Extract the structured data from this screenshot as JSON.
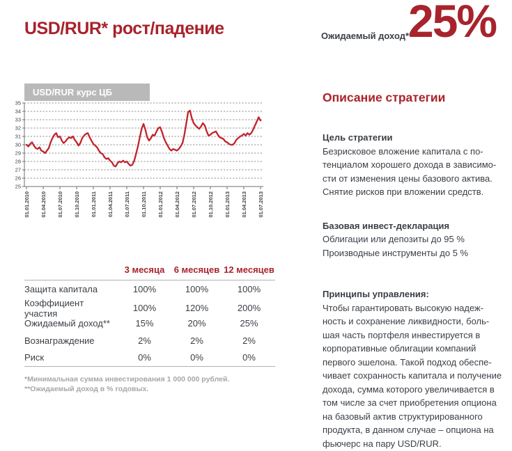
{
  "header": {
    "title": "USD/RUR* рост/падение",
    "expected_income_label": "Ожидаемый доход**",
    "expected_income_value": "25%"
  },
  "chart_data": {
    "type": "line",
    "title": "USD/RUR курс ЦБ",
    "xlabel": "",
    "ylabel": "",
    "ylim": [
      25,
      35
    ],
    "ytick_step": 1,
    "grid": "horizontal-dashed",
    "legend": "none",
    "line_color": "#c2232c",
    "x_tick_labels": [
      "01.01.2010",
      "01.04.2010",
      "01.07.2010",
      "01.10.2010",
      "01.01.2011",
      "01.04.2011",
      "01.07.2011",
      "01.10.2011",
      "01.01.2012",
      "01.04.2012",
      "01.07.2012",
      "01.10.2012",
      "01.01.2013",
      "01.04.2013",
      "01.07.2013"
    ],
    "values": [
      30.0,
      29.8,
      30.1,
      30.3,
      29.9,
      29.6,
      29.5,
      29.7,
      29.3,
      29.2,
      29.0,
      29.3,
      29.6,
      30.3,
      30.8,
      31.2,
      31.4,
      30.9,
      31.0,
      30.5,
      30.2,
      30.4,
      30.7,
      30.9,
      30.8,
      31.0,
      30.6,
      30.3,
      29.9,
      30.2,
      30.8,
      31.1,
      31.3,
      31.4,
      30.9,
      30.5,
      30.1,
      29.9,
      29.7,
      29.3,
      29.0,
      28.9,
      28.5,
      28.3,
      28.4,
      28.1,
      27.9,
      27.5,
      27.4,
      27.8,
      28.0,
      27.9,
      28.1,
      27.9,
      28.0,
      27.7,
      27.5,
      27.6,
      28.1,
      28.9,
      29.8,
      30.9,
      31.9,
      32.5,
      31.8,
      30.9,
      30.5,
      30.8,
      31.2,
      31.1,
      31.6,
      32.0,
      32.1,
      31.5,
      30.8,
      30.3,
      29.9,
      29.5,
      29.3,
      29.5,
      29.4,
      29.3,
      29.5,
      29.8,
      30.2,
      31.2,
      32.5,
      33.9,
      34.1,
      33.2,
      32.6,
      32.3,
      32.1,
      31.9,
      32.2,
      32.6,
      32.3,
      31.6,
      31.1,
      31.2,
      31.4,
      31.5,
      31.6,
      31.2,
      30.9,
      30.8,
      30.7,
      30.4,
      30.3,
      30.1,
      30.0,
      30.0,
      30.2,
      30.6,
      30.8,
      31.0,
      31.1,
      31.3,
      31.1,
      31.4,
      31.2,
      31.4,
      31.8,
      32.3,
      32.8,
      33.3,
      32.9
    ]
  },
  "table": {
    "columns": [
      "3 месяца",
      "6 месяцев",
      "12 месяцев"
    ],
    "rows": [
      {
        "label": "Защита капитала",
        "values": [
          "100%",
          "100%",
          "100%"
        ]
      },
      {
        "label": "Коэффициент участия",
        "values": [
          "100%",
          "120%",
          "200%"
        ]
      },
      {
        "label": "Ожидаемый доход**",
        "values": [
          "15%",
          "20%",
          "25%"
        ]
      },
      {
        "label": "Вознаграждение",
        "values": [
          "2%",
          "2%",
          "2%"
        ]
      },
      {
        "label": "Риск",
        "values": [
          "0%",
          "0%",
          "0%"
        ]
      }
    ],
    "footnote1": "*Минимальная сумма инвестирования 1 000 000 рублей.",
    "footnote2": "**Ожидаемый доход в % годовых."
  },
  "description": {
    "heading": "Описание стратегии",
    "sections": [
      {
        "title": "Цель стратегии",
        "body": "Безрисковое вложение капитала с по-\nтенциалом хорошего дохода в зависимо-\nсти от изменения цены базового актива.\nСнятие рисков при вложении средств."
      },
      {
        "title": "Базовая инвест-декларация",
        "body": "Облигации или депозиты  до 95 %\nПроизводные инструменты до 5 %"
      },
      {
        "title": "Принципы управления:",
        "body": "Чтобы гарантировать высокую надеж-\nность и сохранение ликвидности, боль-\nшая часть портфеля инвестируется в\nкорпоративные облигации компаний\nпервого эшелона. Такой подход обеспе-\nчивает сохранность капитала и получение\nдохода, сумма которого увеличивается  в\nтом числе за счет приобретения опциона\nна базовый актив структурированного\nпродукта, в данном случае – опциона на\nфьючерс на пару USD/RUR."
      }
    ]
  },
  "colors": {
    "brand_red": "#a8232c",
    "chart_line_red": "#c2232c",
    "label_box_gray": "#b9b9b9",
    "body_text": "#3a3f45",
    "footnote_gray": "#a7a7a7",
    "grid_gray": "#8f8f8f"
  }
}
